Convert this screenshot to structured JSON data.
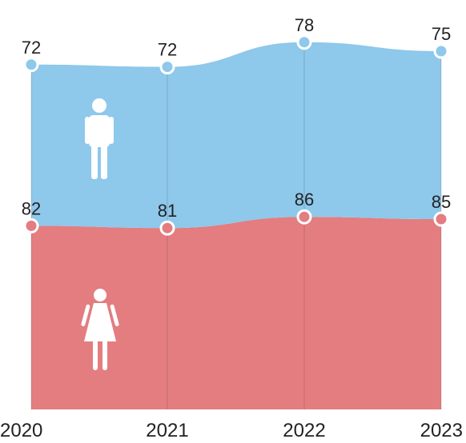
{
  "chart_data": {
    "type": "area",
    "stacked": true,
    "categories": [
      "2020",
      "2021",
      "2022",
      "2023"
    ],
    "series": [
      {
        "name": "",
        "icon": "female-icon",
        "color": "#e37d80",
        "values": [
          82,
          81,
          86,
          85
        ]
      },
      {
        "name": "",
        "icon": "male-icon",
        "color": "#8ec8eb",
        "values": [
          72,
          72,
          78,
          75
        ]
      }
    ],
    "title": "",
    "xlabel": "",
    "ylabel": "",
    "grid": false,
    "legend": "none"
  }
}
